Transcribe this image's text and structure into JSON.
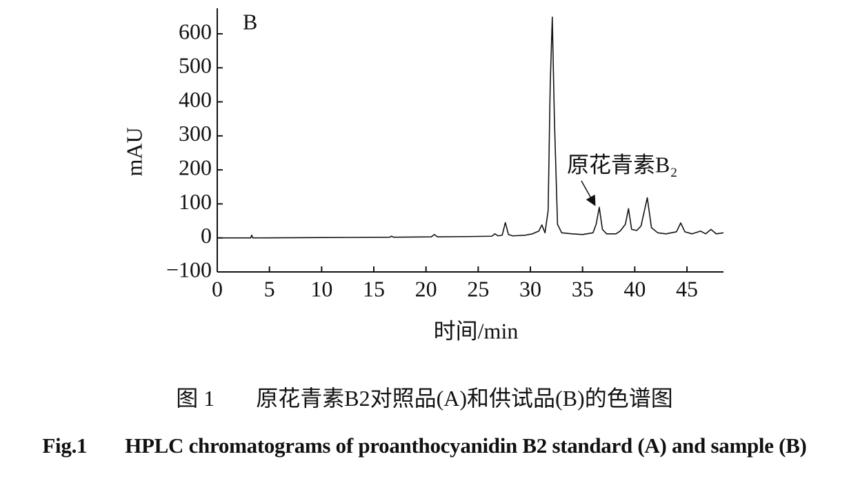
{
  "chart_data": {
    "type": "line",
    "panel_label": "B",
    "y_label": "mAU",
    "x_label": "时间/min",
    "annotation": "原花青素B₂",
    "x": [
      0,
      3.2,
      3.3,
      3.4,
      10,
      16.5,
      16.7,
      16.9,
      20.5,
      20.8,
      21.1,
      24,
      26.3,
      26.6,
      26.9,
      27.3,
      27.6,
      27.9,
      28.3,
      29.5,
      30.2,
      30.8,
      31.1,
      31.4,
      31.7,
      31.9,
      32.1,
      32.3,
      32.6,
      33.0,
      34,
      35,
      36,
      36.3,
      36.6,
      36.9,
      37.3,
      38.2,
      38.6,
      39.1,
      39.4,
      39.7,
      40.2,
      40.6,
      41.2,
      41.6,
      42.2,
      43,
      44,
      44.4,
      44.8,
      45.5,
      46.3,
      46.8,
      47.3,
      47.8,
      48.5
    ],
    "series": [
      {
        "color": "#111111",
        "values": [
          0,
          0,
          8,
          0,
          1,
          2,
          5,
          2,
          3,
          10,
          3,
          4,
          5,
          12,
          6,
          8,
          45,
          10,
          6,
          8,
          12,
          20,
          38,
          15,
          80,
          450,
          649,
          350,
          40,
          15,
          12,
          10,
          15,
          40,
          90,
          25,
          12,
          12,
          20,
          40,
          86,
          25,
          22,
          35,
          118,
          30,
          15,
          12,
          18,
          44,
          18,
          12,
          20,
          12,
          25,
          12,
          15
        ]
      }
    ],
    "xlim": [
      0,
      48.5
    ],
    "ylim": [
      -100,
      675
    ],
    "xticks": [
      0,
      5,
      10,
      15,
      20,
      25,
      30,
      35,
      40,
      45
    ],
    "yticks": [
      {
        "value": -100,
        "label": "−100"
      },
      0,
      100,
      200,
      300,
      400,
      500,
      600
    ],
    "caption_cn_number": "图 1",
    "caption_cn": "原花青素B2对照品(A)和供试品(B)的色谱图",
    "caption_en_number": "Fig.1",
    "caption_en": "HPLC chromatograms of proanthocyanidin B2 standard (A) and sample (B)"
  }
}
